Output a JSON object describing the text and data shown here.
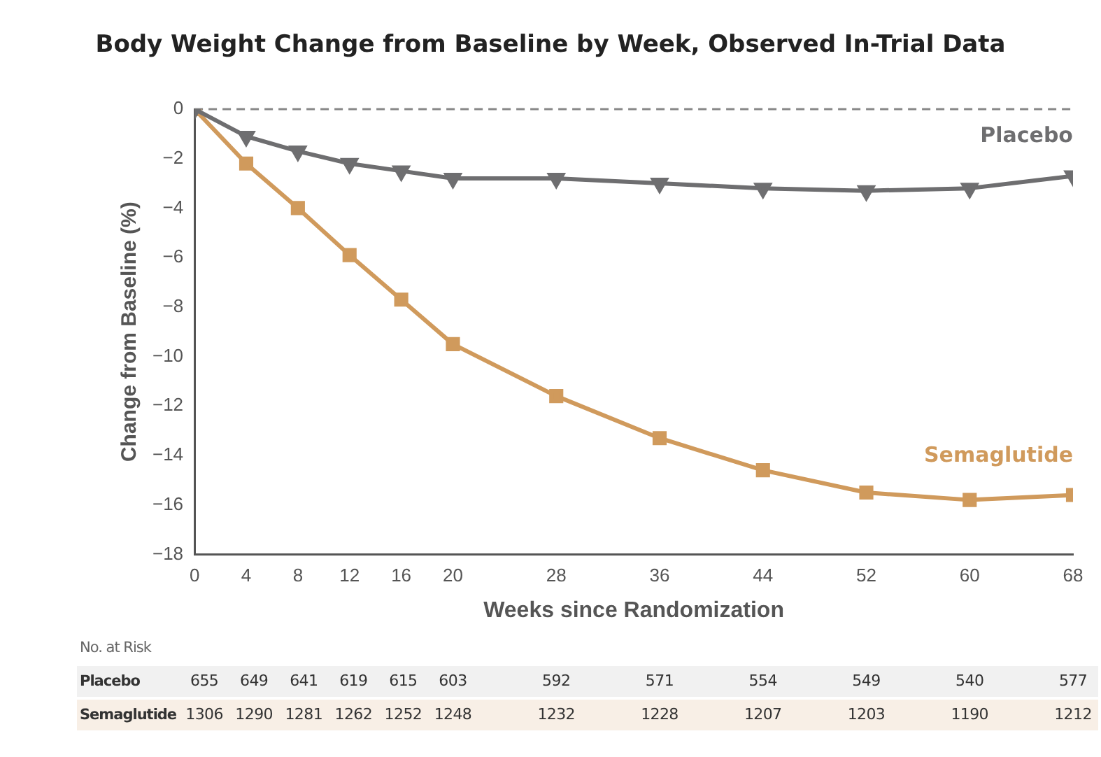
{
  "chart_data": {
    "type": "line",
    "title": "Body Weight Change from Baseline by Week, Observed In-Trial Data",
    "xlabel": "Weeks since Randomization",
    "ylabel": "Change from Baseline (%)",
    "x": [
      0,
      4,
      8,
      12,
      16,
      20,
      28,
      36,
      44,
      52,
      60,
      68
    ],
    "series": [
      {
        "name": "Placebo",
        "color": "#6e6e70",
        "marker": "triangle",
        "values": [
          0,
          -1.1,
          -1.7,
          -2.2,
          -2.5,
          -2.8,
          -2.8,
          -3.0,
          -3.2,
          -3.3,
          -3.2,
          -2.7
        ]
      },
      {
        "name": "Semaglutide",
        "color": "#d09a5c",
        "marker": "square",
        "values": [
          0,
          -2.2,
          -4.0,
          -5.9,
          -7.7,
          -9.5,
          -11.6,
          -13.3,
          -14.6,
          -15.5,
          -15.8,
          -15.6
        ]
      }
    ],
    "xlim": [
      0,
      68
    ],
    "xticks": [
      0,
      4,
      8,
      12,
      16,
      20,
      28,
      36,
      44,
      52,
      60,
      68
    ],
    "ylim": [
      -18,
      0
    ],
    "yticks": [
      -18,
      -16,
      -14,
      -12,
      -10,
      -8,
      -6,
      -4,
      -2,
      0
    ],
    "ref_lines": [
      {
        "axis": "y",
        "value": 0,
        "line_style": "dashed",
        "color": "#888888"
      }
    ],
    "grid": false,
    "legend": false,
    "line_style": "solid",
    "annotations": [
      "No. at Risk",
      "Placebo",
      "655 649 641 619 615 603 592 571 554 549 540 577",
      "Semaglutide",
      "1306 1290 1281 1262 1252 1248 1232 1228 1207 1203 1190 1212"
    ]
  }
}
